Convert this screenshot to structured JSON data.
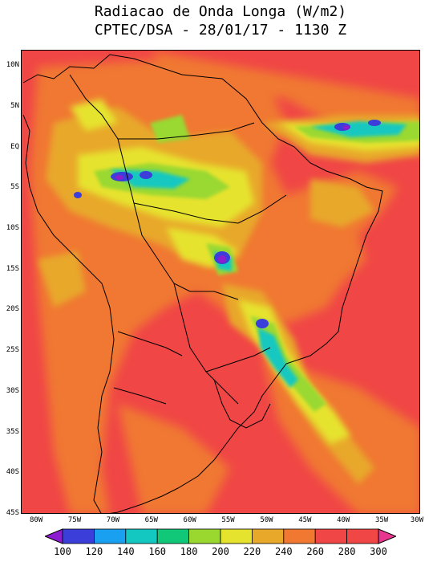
{
  "title": {
    "line1": "Radiacao de Onda Longa (W/m2)",
    "line2": "CPTEC/DSA - 28/01/17 - 1130 Z"
  },
  "map": {
    "lat_range": [
      -45,
      12
    ],
    "lon_range": [
      -82,
      -30
    ],
    "lat_labels": [
      "10N",
      "5N",
      "EQ",
      "5S",
      "10S",
      "15S",
      "20S",
      "25S",
      "30S",
      "35S",
      "40S",
      "45S"
    ],
    "lon_labels": [
      "80W",
      "75W",
      "70W",
      "65W",
      "60W",
      "55W",
      "50W",
      "45W",
      "40W",
      "35W",
      "30W"
    ],
    "background_color": "#f04646"
  },
  "colorbar": {
    "labels": [
      "100",
      "120",
      "140",
      "160",
      "180",
      "200",
      "220",
      "240",
      "260",
      "280",
      "300"
    ],
    "colors": [
      "#8c1ecf",
      "#3b3ed8",
      "#1aa0f0",
      "#12c8c0",
      "#10c878",
      "#9ad830",
      "#e6e32e",
      "#e8a82a",
      "#f07830",
      "#f04646",
      "#e8358f"
    ],
    "min": 100,
    "max": 300,
    "step": 20
  }
}
